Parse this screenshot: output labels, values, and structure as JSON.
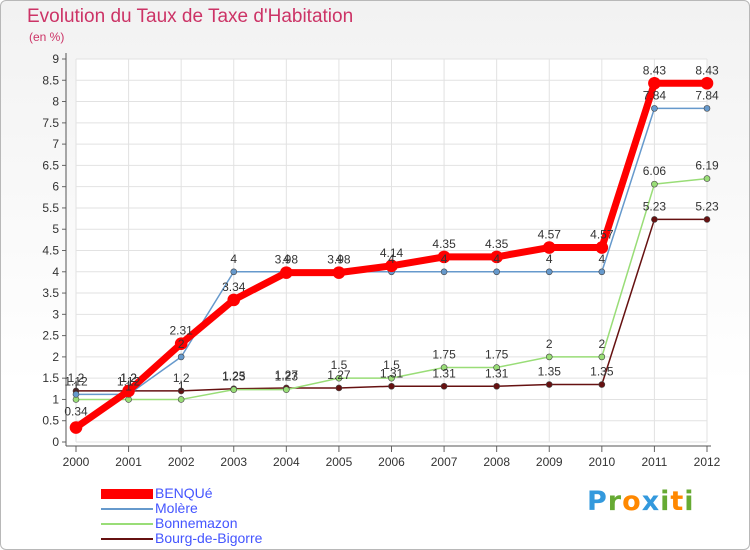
{
  "header": {
    "title": "Evolution du Taux de Taxe d'Habitation",
    "unit": "(en %)"
  },
  "chart_data": {
    "type": "line",
    "title": "Evolution du Taux de Taxe d'Habitation",
    "ylabel": "(en %)",
    "xlabel": "",
    "categories": [
      "2000",
      "2001",
      "2002",
      "2003",
      "2004",
      "2005",
      "2006",
      "2007",
      "2008",
      "2009",
      "2010",
      "2011",
      "2012"
    ],
    "ylim": [
      0,
      9
    ],
    "yticks": [
      "0",
      "0.5",
      "1",
      "1.5",
      "2",
      "2.5",
      "3",
      "3.5",
      "4",
      "4.5",
      "5",
      "5.5",
      "6",
      "6.5",
      "7",
      "7.5",
      "8",
      "8.5",
      "9"
    ],
    "grid": true,
    "legend_position": "bottom-left",
    "series": [
      {
        "name": "BENQUé",
        "color": "#ff0000",
        "values": [
          0.34,
          1.2,
          2.31,
          3.34,
          3.98,
          3.98,
          4.14,
          4.35,
          4.35,
          4.57,
          4.57,
          8.43,
          8.43
        ],
        "labels": [
          "0.34",
          "1.2",
          "2.31",
          "3.34",
          "3.98",
          "3.98",
          "4.14",
          "4.35",
          "4.35",
          "4.57",
          "4.57",
          "8.43",
          "8.43"
        ]
      },
      {
        "name": "Molère",
        "color": "#6699cc",
        "values": [
          1.12,
          1.12,
          2,
          4,
          4,
          4,
          4,
          4,
          4,
          4,
          4,
          7.84,
          7.84
        ],
        "labels": [
          "1.12",
          "1.12",
          "2",
          "4",
          "4",
          "4",
          "4",
          "4",
          "4",
          "4",
          "4",
          "7.84",
          "7.84"
        ]
      },
      {
        "name": "Bonnemazon",
        "color": "#99dd77",
        "values": [
          1,
          1,
          1,
          1.23,
          1.23,
          1.5,
          1.5,
          1.75,
          1.75,
          2,
          2,
          6.06,
          6.19
        ],
        "labels": [
          "1",
          "1",
          "1",
          "1.23",
          "1.23",
          "1.5",
          "1.5",
          "1.75",
          "1.75",
          "2",
          "2",
          "6.06",
          "6.19"
        ]
      },
      {
        "name": "Bourg-de-Bigorre",
        "color": "#661111",
        "values": [
          1.2,
          1.2,
          1.2,
          1.25,
          1.27,
          1.27,
          1.31,
          1.31,
          1.31,
          1.35,
          1.35,
          5.23,
          5.23
        ],
        "labels": [
          "1.2",
          "1.2",
          "1.2",
          "1.25",
          "1.27",
          "1.27",
          "1.31",
          "1.31",
          "1.31",
          "1.35",
          "1.35",
          "5.23",
          "5.23"
        ]
      }
    ]
  },
  "logo": {
    "letters": [
      "P",
      "r",
      "o",
      "x",
      "i",
      "t",
      "i"
    ],
    "colors": [
      "#3399dd",
      "#66aa33",
      "#ff8800",
      "#3399dd",
      "#66aa33",
      "#ff8800",
      "#66aa33"
    ]
  }
}
